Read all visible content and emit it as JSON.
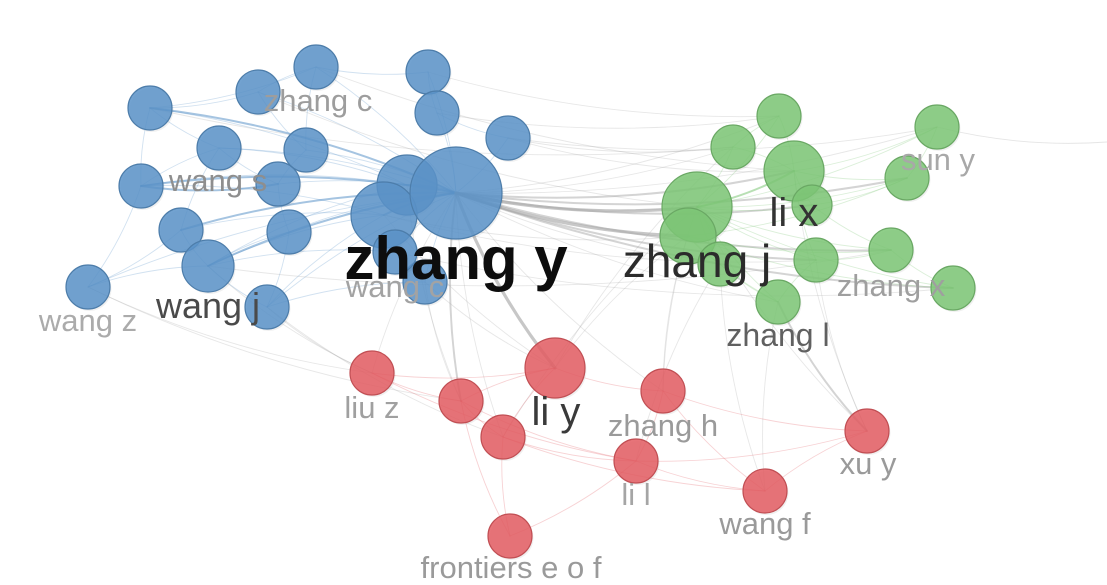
{
  "network": {
    "link_color": "#a9a9a9",
    "blue": {
      "color": "#5b93c8",
      "labels": {
        "zhang_c": "zhang c",
        "wang_s": "wang s",
        "zhang_y": "zhang y",
        "wang_c": "wang c",
        "wang_j": "wang j",
        "wang_z": "wang z"
      }
    },
    "green": {
      "color": "#7dc676",
      "labels": {
        "zhang_j": "zhang j",
        "li_x": "li x",
        "sun_y": "sun y",
        "zhang_x": "zhang x",
        "zhang_l": "zhang l"
      }
    },
    "red": {
      "color": "#e35d63",
      "labels": {
        "liu_z": "liu z",
        "li_y": "li y",
        "zhang_h": "zhang h",
        "li_l": "li l",
        "xu_y": "xu y",
        "wang_f": "wang f",
        "frontiers_e_o_f": "frontiers e o f"
      }
    }
  }
}
